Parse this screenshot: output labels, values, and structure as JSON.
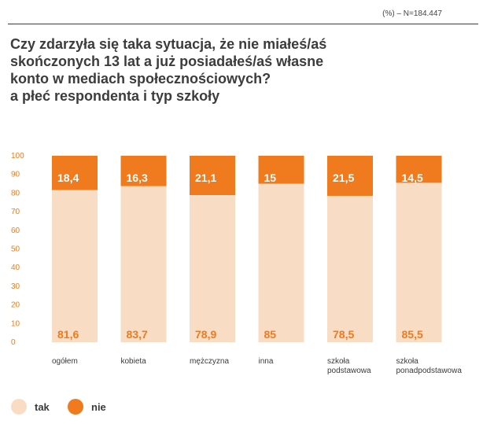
{
  "header": {
    "note": "(%) – N=184.447",
    "title_lines": [
      "Czy zdarzyła się taka sytuacja, że nie miałeś/aś",
      "skończonych 13 lat a już posiadałeś/aś własne",
      "konto w mediach społecznościowych?",
      "a płeć respondenta i typ szkoły"
    ]
  },
  "colors": {
    "tak": "#f9dcc4",
    "nie": "#f07a1e",
    "axis_text": "#f07a1e",
    "value_on_tak": "#f07a1e",
    "value_on_nie": "#ffffff"
  },
  "legend": [
    {
      "key": "tak",
      "label": "tak"
    },
    {
      "key": "nie",
      "label": "nie"
    }
  ],
  "chart_data": {
    "type": "bar",
    "stacked": true,
    "title": "Czy zdarzyła się taka sytuacja, że nie miałeś/aś skończonych 13 lat a już posiadałeś/aś własne konto w mediach społecznościowych? a płeć respondenta i typ szkoły",
    "unit": "%",
    "ylim": [
      0,
      100
    ],
    "yticks": [
      0,
      10,
      20,
      30,
      40,
      50,
      60,
      70,
      80,
      90,
      100
    ],
    "categories": [
      [
        "ogółem"
      ],
      [
        "kobieta"
      ],
      [
        "mężczyzna"
      ],
      [
        "inna"
      ],
      [
        "szkoła",
        "podstawowa"
      ],
      [
        "szkoła",
        "ponadpodstawowa"
      ]
    ],
    "series": [
      {
        "name": "tak",
        "values": [
          81.6,
          83.7,
          78.9,
          85,
          78.5,
          85.5
        ],
        "labels": [
          "81,6",
          "83,7",
          "78,9",
          "85",
          "78,5",
          "85,5"
        ]
      },
      {
        "name": "nie",
        "values": [
          18.4,
          16.3,
          21.1,
          15,
          21.5,
          14.5
        ],
        "labels": [
          "18,4",
          "16,3",
          "21,1",
          "15",
          "21,5",
          "14,5"
        ]
      }
    ],
    "grid": false,
    "legend_position": "bottom-left"
  }
}
